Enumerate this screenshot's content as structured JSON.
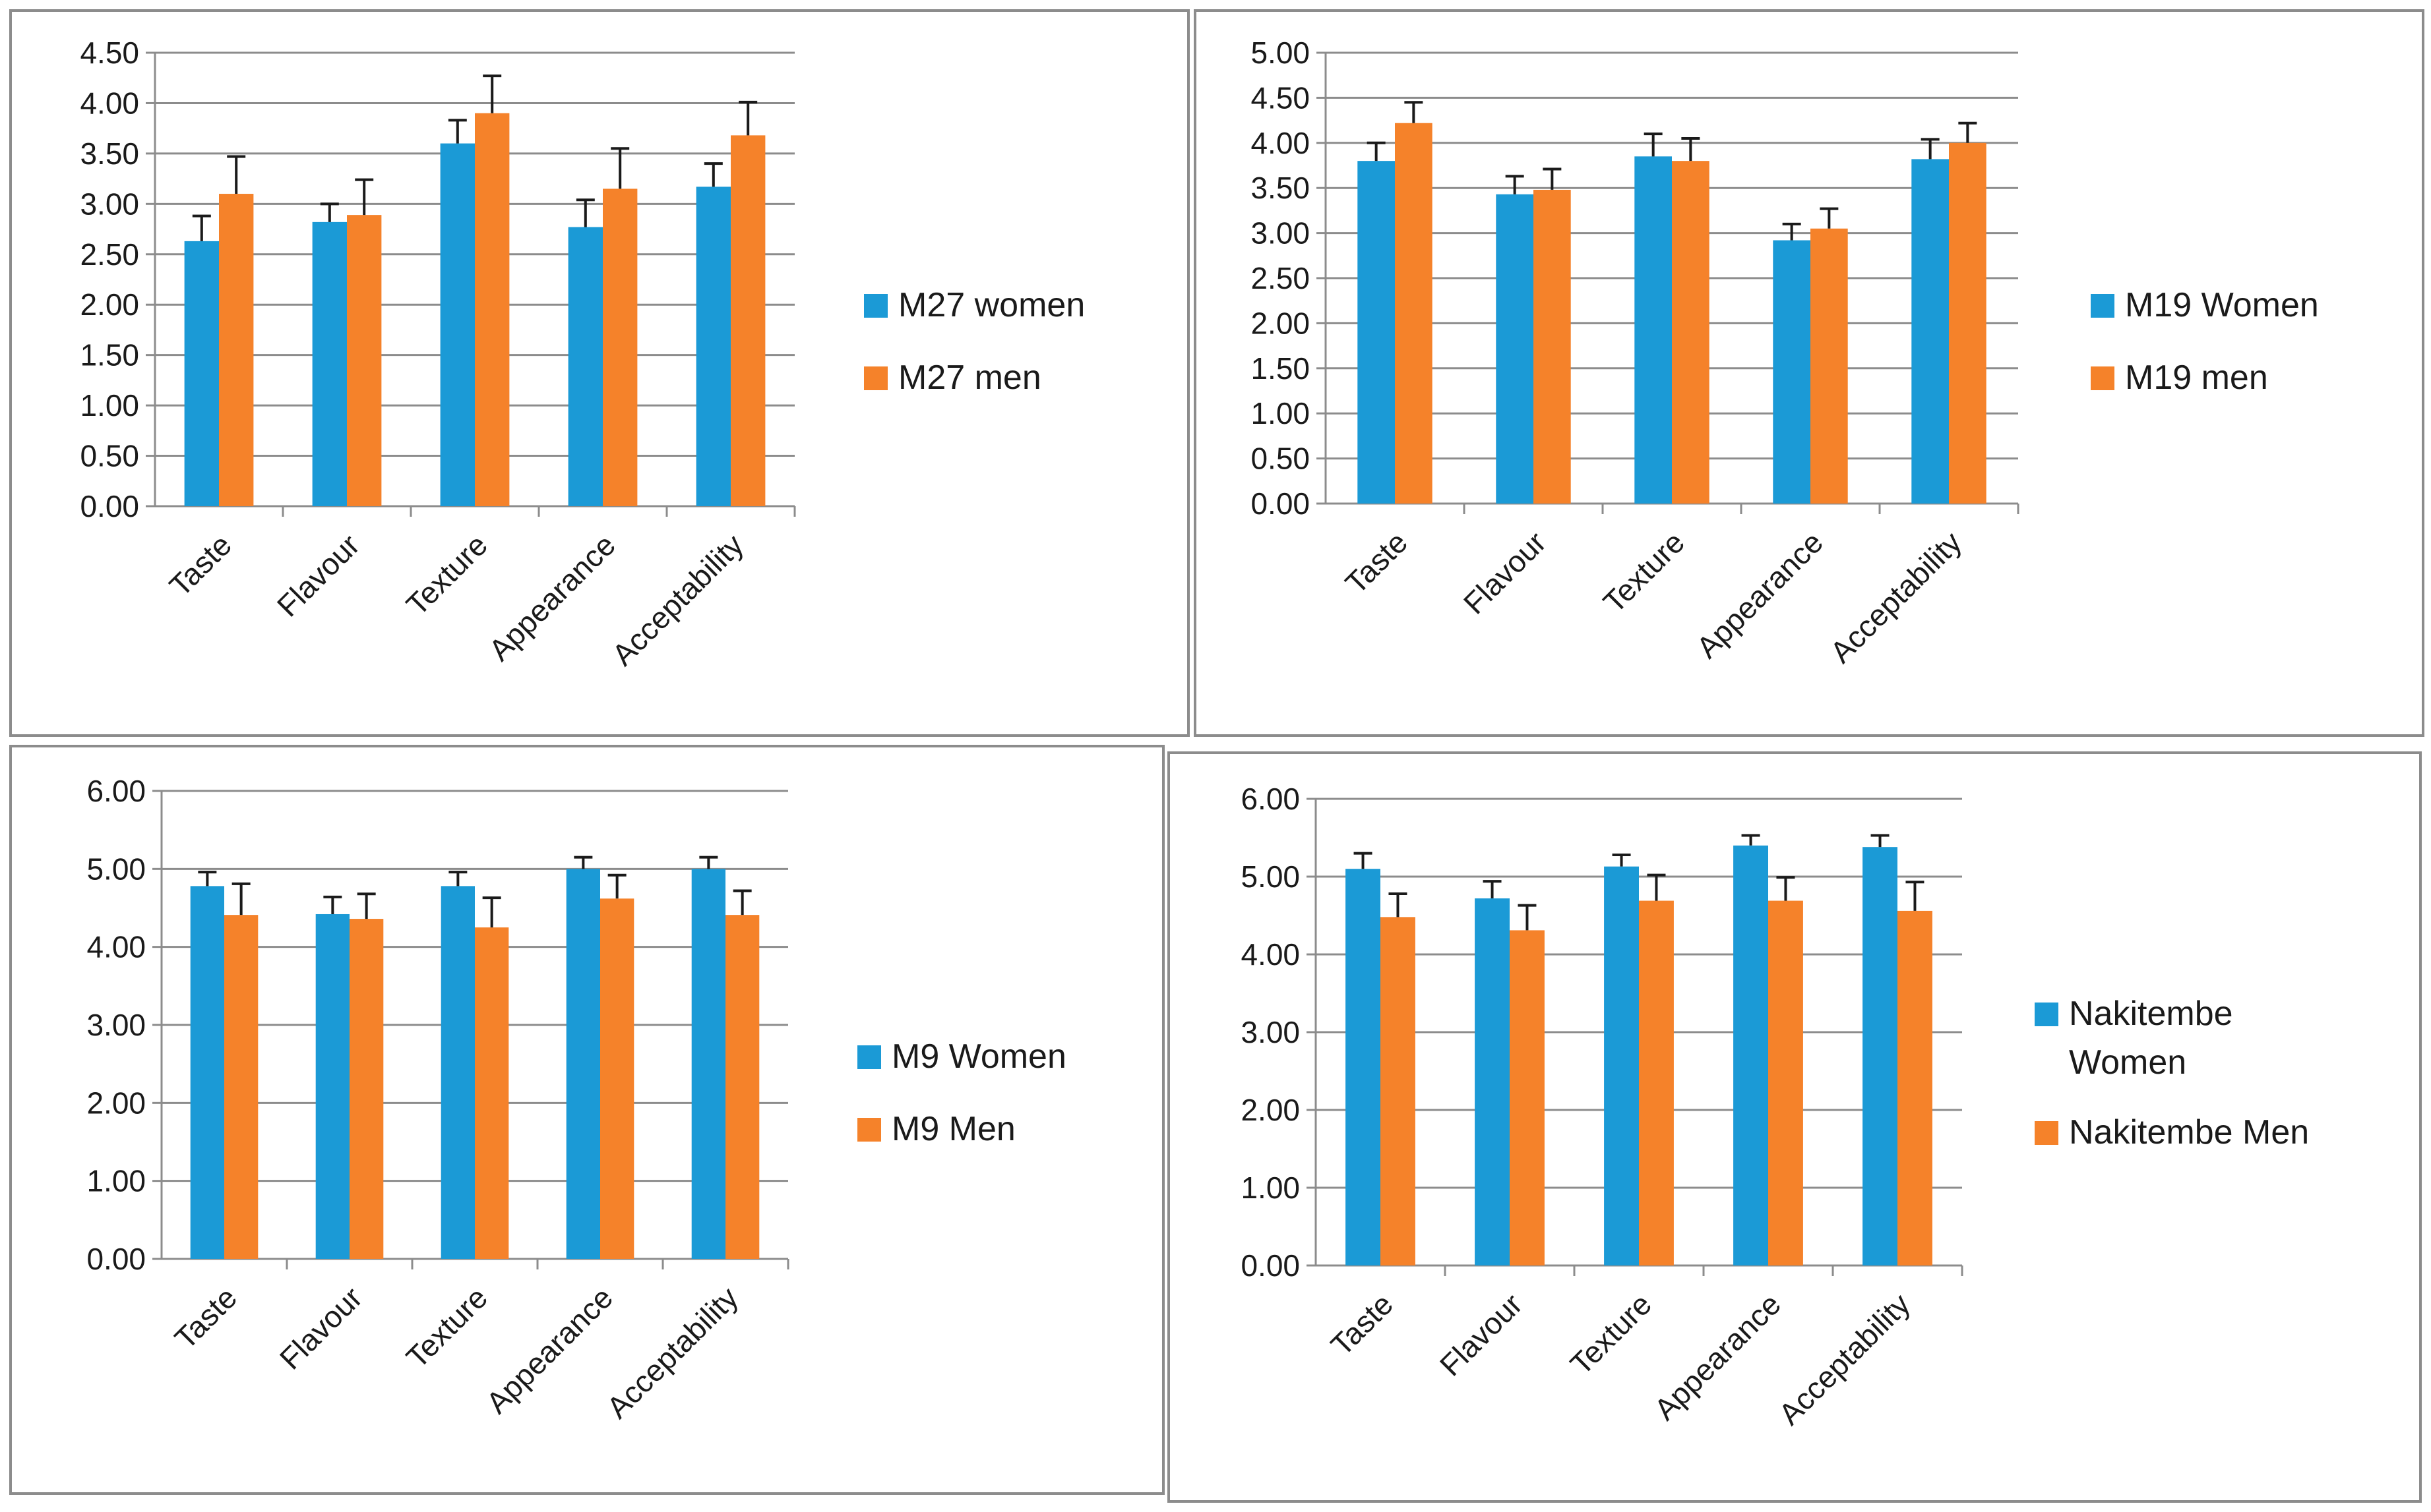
{
  "colors": {
    "women": "#1b9ad6",
    "men": "#f5822a"
  },
  "chart_data": [
    {
      "type": "bar",
      "title": "",
      "xlabel": "",
      "ylabel": "",
      "categories": [
        "Taste",
        "Flavour",
        "Texture",
        "Appearance",
        "Acceptability"
      ],
      "ylim": [
        0,
        4.5
      ],
      "y_ticks": [
        "0.00",
        "0.50",
        "1.00",
        "1.50",
        "2.00",
        "2.50",
        "3.00",
        "3.50",
        "4.00",
        "4.50"
      ],
      "series": [
        {
          "name": "M27 women",
          "values": [
            2.63,
            2.82,
            3.6,
            2.77,
            3.17
          ],
          "errors": [
            0.25,
            0.18,
            0.23,
            0.27,
            0.23
          ]
        },
        {
          "name": "M27 men",
          "values": [
            3.1,
            2.89,
            3.9,
            3.15,
            3.68
          ],
          "errors": [
            0.37,
            0.35,
            0.37,
            0.4,
            0.33
          ]
        }
      ]
    },
    {
      "type": "bar",
      "title": "",
      "xlabel": "",
      "ylabel": "",
      "categories": [
        "Taste",
        "Flavour",
        "Texture",
        "Appearance",
        "Acceptability"
      ],
      "ylim": [
        0,
        5
      ],
      "y_ticks": [
        "0.00",
        "0.50",
        "1.00",
        "1.50",
        "2.00",
        "2.50",
        "3.00",
        "3.50",
        "4.00",
        "4.50",
        "5.00"
      ],
      "series": [
        {
          "name": "M19 Women",
          "values": [
            3.8,
            3.43,
            3.85,
            2.92,
            3.82
          ],
          "errors": [
            0.2,
            0.2,
            0.25,
            0.18,
            0.22
          ]
        },
        {
          "name": "M19 men",
          "values": [
            4.22,
            3.48,
            3.8,
            3.05,
            4.0
          ],
          "errors": [
            0.23,
            0.23,
            0.25,
            0.22,
            0.22
          ]
        }
      ]
    },
    {
      "type": "bar",
      "title": "",
      "xlabel": "",
      "ylabel": "",
      "categories": [
        "Taste",
        "Flavour",
        "Texture",
        "Appearance",
        "Acceptability"
      ],
      "ylim": [
        0,
        6
      ],
      "y_ticks": [
        "0.00",
        "1.00",
        "2.00",
        "3.00",
        "4.00",
        "5.00",
        "6.00"
      ],
      "series": [
        {
          "name": "M9 Women",
          "values": [
            4.78,
            4.42,
            4.78,
            5.0,
            5.0
          ],
          "errors": [
            0.18,
            0.22,
            0.18,
            0.15,
            0.15
          ]
        },
        {
          "name": "M9 Men",
          "values": [
            4.41,
            4.36,
            4.25,
            4.62,
            4.41
          ],
          "errors": [
            0.4,
            0.32,
            0.38,
            0.3,
            0.31
          ]
        }
      ]
    },
    {
      "type": "bar",
      "title": "",
      "xlabel": "",
      "ylabel": "",
      "categories": [
        "Taste",
        "Flavour",
        "Texture",
        "Appearance",
        "Acceptability"
      ],
      "ylim": [
        0,
        6
      ],
      "y_ticks": [
        "0.00",
        "1.00",
        "2.00",
        "3.00",
        "4.00",
        "5.00",
        "6.00"
      ],
      "series": [
        {
          "name": "Nakitembe Women",
          "values": [
            5.1,
            4.72,
            5.13,
            5.4,
            5.38
          ],
          "errors": [
            0.2,
            0.22,
            0.15,
            0.13,
            0.15
          ]
        },
        {
          "name": "Nakitembe Men",
          "values": [
            4.48,
            4.31,
            4.69,
            4.69,
            4.56
          ],
          "errors": [
            0.3,
            0.32,
            0.33,
            0.3,
            0.37
          ]
        }
      ],
      "legend_lines": [
        [
          "Nakitembe",
          "Women"
        ],
        [
          "Nakitembe Men"
        ]
      ]
    }
  ]
}
